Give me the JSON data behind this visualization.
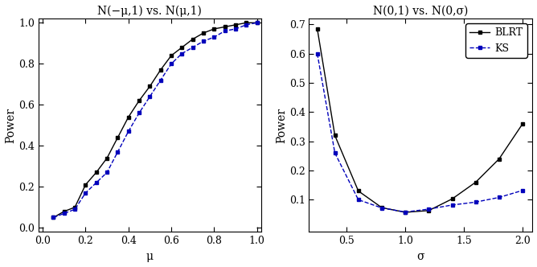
{
  "plot1": {
    "title": "N(−μ,1) vs. N(μ,1)",
    "xlabel": "μ",
    "ylabel": "Power",
    "xlim": [
      -0.02,
      1.02
    ],
    "ylim": [
      -0.02,
      1.02
    ],
    "xticks": [
      0.0,
      0.2,
      0.4,
      0.6,
      0.8,
      1.0
    ],
    "yticks": [
      0.0,
      0.2,
      0.4,
      0.6,
      0.8,
      1.0
    ],
    "blrt_x": [
      0.05,
      0.1,
      0.15,
      0.2,
      0.25,
      0.3,
      0.35,
      0.4,
      0.45,
      0.5,
      0.55,
      0.6,
      0.65,
      0.7,
      0.75,
      0.8,
      0.85,
      0.9,
      0.95,
      1.0
    ],
    "blrt_y": [
      0.05,
      0.08,
      0.1,
      0.21,
      0.27,
      0.34,
      0.44,
      0.54,
      0.62,
      0.69,
      0.77,
      0.84,
      0.88,
      0.92,
      0.95,
      0.97,
      0.98,
      0.99,
      1.0,
      1.0
    ],
    "ks_x": [
      0.05,
      0.1,
      0.15,
      0.2,
      0.25,
      0.3,
      0.35,
      0.4,
      0.45,
      0.5,
      0.55,
      0.6,
      0.65,
      0.7,
      0.75,
      0.8,
      0.85,
      0.9,
      0.95,
      1.0
    ],
    "ks_y": [
      0.05,
      0.07,
      0.09,
      0.17,
      0.22,
      0.27,
      0.37,
      0.47,
      0.56,
      0.64,
      0.72,
      0.8,
      0.85,
      0.88,
      0.91,
      0.93,
      0.96,
      0.97,
      0.99,
      1.0
    ]
  },
  "plot2": {
    "title": "N(0,1) vs. N(0,σ)",
    "xlabel": "σ",
    "ylabel": "Power",
    "xlim": [
      0.18,
      2.08
    ],
    "ylim": [
      -0.01,
      0.72
    ],
    "xticks": [
      0.5,
      1.0,
      1.5,
      2.0
    ],
    "yticks": [
      0.1,
      0.2,
      0.3,
      0.4,
      0.5,
      0.6,
      0.7
    ],
    "blrt_x": [
      0.25,
      0.4,
      0.6,
      0.8,
      1.0,
      1.2,
      1.4,
      1.6,
      1.8,
      2.0
    ],
    "blrt_y": [
      0.685,
      0.32,
      0.13,
      0.073,
      0.057,
      0.063,
      0.103,
      0.16,
      0.24,
      0.36
    ],
    "ks_x": [
      0.25,
      0.4,
      0.6,
      0.8,
      1.0,
      1.2,
      1.4,
      1.6,
      1.8,
      2.0
    ],
    "ks_y": [
      0.6,
      0.26,
      0.1,
      0.072,
      0.058,
      0.068,
      0.082,
      0.092,
      0.108,
      0.132
    ]
  },
  "blrt_color": "#000000",
  "ks_color": "#0000bb",
  "blrt_linestyle": "-",
  "ks_linestyle": "--",
  "marker": "s",
  "markersize": 3.0,
  "linewidth": 1.0,
  "legend_labels": [
    "BLRT",
    "KS"
  ],
  "background_color": "#ffffff"
}
